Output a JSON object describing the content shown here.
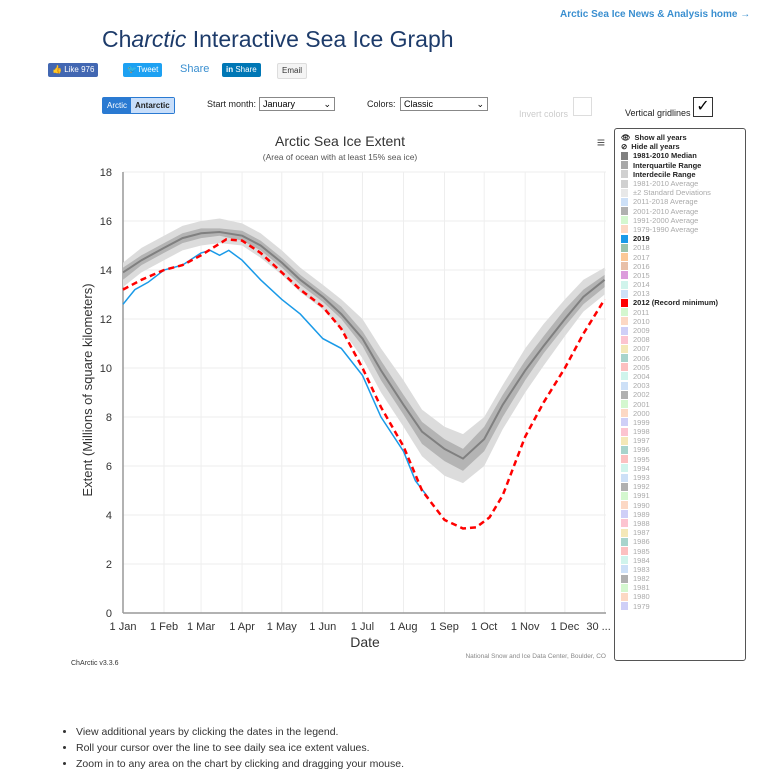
{
  "header": {
    "home_link": "Arctic Sea Ice News & Analysis home →",
    "title_prefix": "Ch",
    "title_italic": "arctic",
    "title_rest": " Interactive Sea Ice Graph"
  },
  "social": {
    "like": "Like 976",
    "tweet": "Tweet",
    "share": "Share",
    "linkedin": "Share",
    "email": "Email"
  },
  "controls": {
    "hemispheres": [
      "Arctic",
      "Antarctic"
    ],
    "active_hemisphere": "Arctic",
    "start_month_label": "Start month:",
    "start_month": "January",
    "colors_label": "Colors:",
    "colors": "Classic",
    "invert_label": "Invert colors",
    "invert_checked": false,
    "vgrid_label": "Vertical gridlines",
    "vgrid_checked": true
  },
  "legend": {
    "show_all": "Show all years",
    "hide_all": "Hide all years",
    "items": [
      {
        "label": "1981-2010 Median",
        "color": "#808080",
        "on": true
      },
      {
        "label": "Interquartile Range",
        "color": "#a8a8a8",
        "on": true
      },
      {
        "label": "Interdecile Range",
        "color": "#d0d0d0",
        "on": true
      },
      {
        "label": "1981-2010 Average",
        "color": "#d0d0d0",
        "on": false
      },
      {
        "label": "±2 Standard Deviations",
        "color": "#e8e8e8",
        "on": false
      },
      {
        "label": "2011-2018 Average",
        "color": "#cde0f7",
        "on": false
      },
      {
        "label": "2001-2010 Average",
        "color": "#b0b0b0",
        "on": false
      },
      {
        "label": "1991-2000 Average",
        "color": "#d4f7cf",
        "on": false
      },
      {
        "label": "1979-1990 Average",
        "color": "#fcd8c4",
        "on": false
      },
      {
        "label": "2019",
        "color": "#1a9ae8",
        "on": true
      },
      {
        "label": "2018",
        "color": "#9cc4ac",
        "on": false
      },
      {
        "label": "2017",
        "color": "#fcc896",
        "on": false
      },
      {
        "label": "2016",
        "color": "#e8c0a8",
        "on": false
      },
      {
        "label": "2015",
        "color": "#dc9cdc",
        "on": false
      },
      {
        "label": "2014",
        "color": "#d0f4ec",
        "on": false
      },
      {
        "label": "2013",
        "color": "#cde0f7",
        "on": false
      },
      {
        "label": "2012 (Record minimum)",
        "color": "#ff0000",
        "on": true
      },
      {
        "label": "2011",
        "color": "#d4f7cf",
        "on": false
      },
      {
        "label": "2010",
        "color": "#fcd8c4",
        "on": false
      },
      {
        "label": "2009",
        "color": "#cfcff7",
        "on": false
      },
      {
        "label": "2008",
        "color": "#fcc4d0",
        "on": false
      },
      {
        "label": "2007",
        "color": "#f4e8b8",
        "on": false
      },
      {
        "label": "2006",
        "color": "#a8d4cc",
        "on": false
      },
      {
        "label": "2005",
        "color": "#fcc0c0",
        "on": false
      },
      {
        "label": "2004",
        "color": "#d0f4ec",
        "on": false
      },
      {
        "label": "2003",
        "color": "#cde0f7",
        "on": false
      },
      {
        "label": "2002",
        "color": "#b0b0b0",
        "on": false
      },
      {
        "label": "2001",
        "color": "#d4f7cf",
        "on": false
      },
      {
        "label": "2000",
        "color": "#fcd8c4",
        "on": false
      },
      {
        "label": "1999",
        "color": "#cfcff7",
        "on": false
      },
      {
        "label": "1998",
        "color": "#fcc4d0",
        "on": false
      },
      {
        "label": "1997",
        "color": "#f4e8b8",
        "on": false
      },
      {
        "label": "1996",
        "color": "#a8d4cc",
        "on": false
      },
      {
        "label": "1995",
        "color": "#fcc0c0",
        "on": false
      },
      {
        "label": "1994",
        "color": "#d0f4ec",
        "on": false
      },
      {
        "label": "1993",
        "color": "#cde0f7",
        "on": false
      },
      {
        "label": "1992",
        "color": "#b0b0b0",
        "on": false
      },
      {
        "label": "1991",
        "color": "#d4f7cf",
        "on": false
      },
      {
        "label": "1990",
        "color": "#fcd8c4",
        "on": false
      },
      {
        "label": "1989",
        "color": "#cfcff7",
        "on": false
      },
      {
        "label": "1988",
        "color": "#fcc4d0",
        "on": false
      },
      {
        "label": "1987",
        "color": "#f4e8b8",
        "on": false
      },
      {
        "label": "1986",
        "color": "#a8d4cc",
        "on": false
      },
      {
        "label": "1985",
        "color": "#fcc0c0",
        "on": false
      },
      {
        "label": "1984",
        "color": "#d0f4ec",
        "on": false
      },
      {
        "label": "1983",
        "color": "#cde0f7",
        "on": false
      },
      {
        "label": "1982",
        "color": "#b0b0b0",
        "on": false
      },
      {
        "label": "1981",
        "color": "#d4f7cf",
        "on": false
      },
      {
        "label": "1980",
        "color": "#fcd8c4",
        "on": false
      },
      {
        "label": "1979",
        "color": "#cfcff7",
        "on": false
      }
    ]
  },
  "chart_data": {
    "type": "line",
    "title": "Arctic Sea Ice Extent",
    "subtitle": "(Area of ocean with at least 15% sea ice)",
    "xlabel": "Date",
    "ylabel": "Extent (Millions of square kilometers)",
    "ylim": [
      0,
      18
    ],
    "yticks": [
      0,
      2,
      4,
      6,
      8,
      10,
      12,
      14,
      16,
      18
    ],
    "xtick_labels": [
      "1 Jan",
      "1 Feb",
      "1 Mar",
      "1 Apr",
      "1 May",
      "1 Jun",
      "1 Jul",
      "1 Aug",
      "1 Sep",
      "1 Oct",
      "1 Nov",
      "1 Dec",
      "30 ..."
    ],
    "grid": true,
    "legend": "right",
    "credit": "National Snow and Ice Data Center, Boulder, CO",
    "x": [
      "01-01",
      "01-15",
      "02-01",
      "02-15",
      "03-01",
      "03-15",
      "04-01",
      "04-15",
      "05-01",
      "05-15",
      "06-01",
      "06-15",
      "07-01",
      "07-15",
      "08-01",
      "08-15",
      "09-01",
      "09-15",
      "10-01",
      "10-15",
      "11-01",
      "11-15",
      "12-01",
      "12-15",
      "12-31"
    ],
    "bands": [
      {
        "name": "Interdecile Range",
        "color": "#dcdcdc",
        "low": [
          13.3,
          13.9,
          14.4,
          14.8,
          15.0,
          15.1,
          15.0,
          14.5,
          13.8,
          13.1,
          12.4,
          11.6,
          10.4,
          9.0,
          7.6,
          6.4,
          5.6,
          5.3,
          6.0,
          7.5,
          9.0,
          10.1,
          11.3,
          12.3,
          13.0
        ],
        "high": [
          14.3,
          14.9,
          15.4,
          15.8,
          16.0,
          16.1,
          15.9,
          15.5,
          14.8,
          14.1,
          13.4,
          12.8,
          12.0,
          10.8,
          9.5,
          8.3,
          7.6,
          7.3,
          8.0,
          9.3,
          10.8,
          11.8,
          12.8,
          13.6,
          14.1
        ]
      },
      {
        "name": "Interquartile Range",
        "color": "#b4b4b4",
        "low": [
          13.6,
          14.2,
          14.7,
          15.1,
          15.3,
          15.4,
          15.2,
          14.8,
          14.1,
          13.4,
          12.7,
          12.0,
          10.9,
          9.5,
          8.1,
          6.9,
          6.2,
          5.8,
          6.6,
          8.0,
          9.5,
          10.6,
          11.7,
          12.6,
          13.3
        ],
        "high": [
          14.1,
          14.6,
          15.1,
          15.5,
          15.7,
          15.7,
          15.6,
          15.2,
          14.5,
          13.8,
          13.1,
          12.5,
          11.5,
          10.3,
          8.9,
          7.8,
          7.1,
          6.7,
          7.6,
          8.9,
          10.3,
          11.3,
          12.4,
          13.2,
          13.8
        ]
      },
      {
        "name": "1981-2010 Median",
        "color": "#808080",
        "line": [
          13.9,
          14.4,
          14.9,
          15.3,
          15.5,
          15.55,
          15.4,
          15.0,
          14.3,
          13.6,
          12.9,
          12.2,
          11.2,
          9.9,
          8.5,
          7.4,
          6.7,
          6.3,
          7.1,
          8.5,
          9.9,
          10.9,
          12.0,
          12.9,
          13.6
        ]
      }
    ],
    "series": [
      {
        "name": "2019",
        "color": "#1a9ae8",
        "x": [
          "01-01",
          "01-10",
          "01-20",
          "02-01",
          "02-15",
          "03-01",
          "03-08",
          "03-15",
          "03-22",
          "04-01",
          "04-15",
          "05-01",
          "05-15",
          "06-01",
          "06-15",
          "07-01",
          "07-15",
          "08-01",
          "08-10",
          "08-20"
        ],
        "values": [
          12.6,
          13.2,
          13.5,
          14.0,
          14.2,
          14.7,
          14.8,
          14.6,
          14.8,
          14.4,
          13.6,
          12.8,
          12.2,
          11.2,
          10.8,
          9.7,
          8.0,
          6.6,
          5.4,
          4.7
        ]
      },
      {
        "name": "2012 (Record minimum)",
        "color": "#ff0000",
        "dashed": true,
        "x": [
          "01-01",
          "01-15",
          "02-01",
          "02-15",
          "03-01",
          "03-20",
          "04-01",
          "04-15",
          "05-01",
          "05-15",
          "06-01",
          "06-15",
          "07-01",
          "07-15",
          "08-01",
          "08-15",
          "09-01",
          "09-15",
          "09-25",
          "10-05",
          "10-15",
          "11-01",
          "11-15",
          "12-01",
          "12-15",
          "12-31"
        ],
        "values": [
          13.2,
          13.6,
          14.0,
          14.2,
          14.6,
          15.25,
          15.2,
          14.7,
          13.9,
          13.2,
          12.5,
          11.6,
          10.0,
          8.4,
          6.8,
          5.0,
          3.8,
          3.45,
          3.5,
          3.9,
          4.8,
          7.2,
          8.6,
          10.0,
          11.4,
          12.8
        ]
      }
    ]
  },
  "footer": {
    "version": "ChArctic v3.3.6",
    "bullets": [
      "View additional years by clicking the dates in the legend.",
      "Roll your cursor over the line to see daily sea ice extent values.",
      "Zoom in to any area on the chart by clicking and dragging your mouse."
    ]
  }
}
